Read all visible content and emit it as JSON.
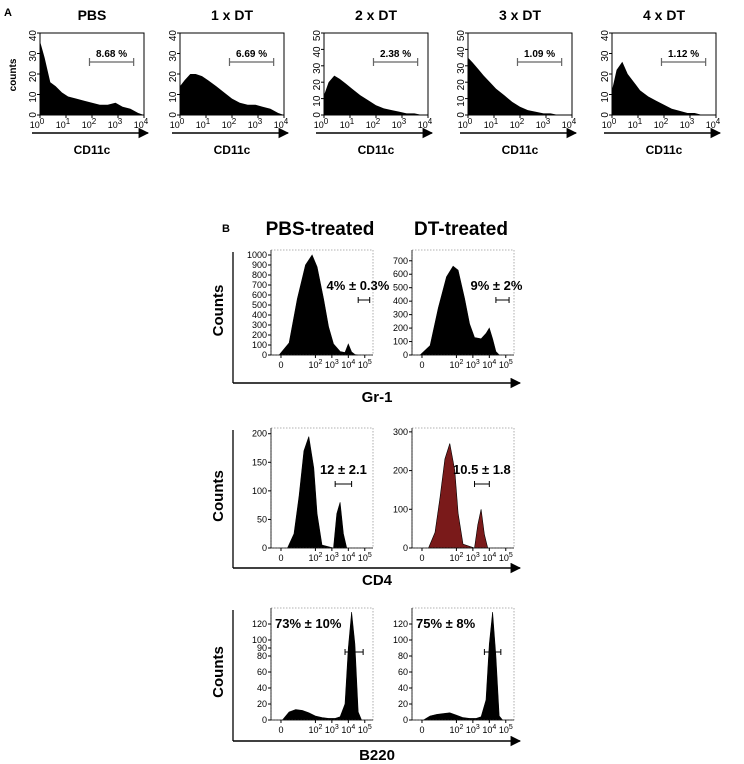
{
  "chart_data": [
    {
      "panel": "A",
      "type": "area",
      "xlabel": "CD11c",
      "ylabel": "counts",
      "x_scale": "log",
      "xlim": [
        1,
        10000
      ],
      "x_ticks": [
        "10",
        "10",
        "10",
        "10",
        "10"
      ],
      "x_tick_exponents": [
        "0",
        "1",
        "2",
        "3",
        "4"
      ],
      "gate_range": [
        80,
        4000
      ],
      "histograms": [
        {
          "title": "PBS",
          "gate_label": "8.68 %",
          "ylim": [
            0,
            40
          ],
          "y_ticks": [
            "0",
            "10",
            "20",
            "30",
            "40"
          ],
          "x": [
            1,
            1.5,
            2.5,
            4,
            7,
            12,
            25,
            50,
            100,
            200,
            400,
            800,
            1500,
            3000,
            6000,
            10000
          ],
          "y": [
            36,
            28,
            16,
            14,
            11,
            9,
            8,
            7,
            6,
            5,
            5,
            6,
            4,
            3,
            1,
            0
          ]
        },
        {
          "title": "1 x DT",
          "gate_label": "6.69 %",
          "ylim": [
            0,
            40
          ],
          "y_ticks": [
            "0",
            "10",
            "20",
            "30",
            "40"
          ],
          "x": [
            1,
            1.5,
            2.5,
            4,
            7,
            12,
            25,
            50,
            100,
            200,
            400,
            800,
            1500,
            3000,
            6000,
            10000
          ],
          "y": [
            14,
            17,
            20,
            20,
            19,
            17,
            14,
            11,
            8,
            6,
            5,
            5,
            4,
            3,
            1,
            0
          ]
        },
        {
          "title": "2 x DT",
          "gate_label": "2.38 %",
          "ylim": [
            0,
            50
          ],
          "y_ticks": [
            "0",
            "10",
            "20",
            "30",
            "40",
            "50"
          ],
          "x": [
            1,
            1.5,
            2.5,
            4,
            7,
            12,
            25,
            50,
            100,
            200,
            400,
            800,
            1500,
            3000,
            6000,
            10000
          ],
          "y": [
            12,
            20,
            24,
            22,
            19,
            16,
            12,
            9,
            6,
            4,
            3,
            2,
            1,
            1,
            0,
            0
          ]
        },
        {
          "title": "3 x DT",
          "gate_label": "1.09 %",
          "ylim": [
            0,
            50
          ],
          "y_ticks": [
            "0",
            "10",
            "20",
            "30",
            "40",
            "50"
          ],
          "x": [
            1,
            1.5,
            2.5,
            4,
            7,
            12,
            25,
            50,
            100,
            200,
            400,
            800,
            1500,
            3000,
            6000,
            10000
          ],
          "y": [
            35,
            32,
            28,
            24,
            20,
            16,
            12,
            8,
            5,
            3,
            2,
            1,
            1,
            0,
            0,
            0
          ]
        },
        {
          "title": "4 x DT",
          "gate_label": "1.12 %",
          "ylim": [
            0,
            40
          ],
          "y_ticks": [
            "0",
            "10",
            "20",
            "30",
            "40"
          ],
          "x": [
            1,
            1.5,
            2.5,
            4,
            7,
            12,
            25,
            50,
            100,
            200,
            400,
            800,
            1500,
            3000,
            6000,
            10000
          ],
          "y": [
            12,
            22,
            26,
            20,
            16,
            12,
            9,
            7,
            5,
            3,
            2,
            1,
            1,
            0,
            0,
            0
          ]
        }
      ]
    },
    {
      "panel": "B",
      "type": "area",
      "ylabel": "Counts",
      "x_scale": "log",
      "x_ticks": [
        "0",
        "10",
        "10",
        "10",
        "10"
      ],
      "x_tick_exponents": [
        "",
        "2",
        "3",
        "4",
        "5"
      ],
      "column_titles": [
        "PBS-treated",
        "DT-treated"
      ],
      "rows": [
        {
          "marker": "Gr-1",
          "histograms": [
            {
              "group": "PBS-treated",
              "gate_label": "4% ± 0.3%",
              "ylim": [
                0,
                1050
              ],
              "y_ticks": [
                "0",
                "100",
                "200",
                "300",
                "400",
                "500",
                "600",
                "700",
                "800",
                "900",
                "1000"
              ],
              "color": "#000000",
              "x": [
                -0.2,
                0.4,
                0.9,
                1.4,
                1.8,
                2.1,
                2.5,
                2.8,
                3.1,
                3.5,
                3.8,
                4.0,
                4.2,
                4.4,
                4.6
              ],
              "y": [
                0,
                120,
                560,
                900,
                1000,
                880,
                560,
                280,
                110,
                35,
                25,
                110,
                30,
                5,
                0
              ],
              "gate_range": [
                4.6,
                5.3
              ]
            },
            {
              "group": "DT-treated",
              "gate_label": "9% ± 2%",
              "ylim": [
                0,
                780
              ],
              "y_ticks": [
                "0",
                "100",
                "200",
                "300",
                "400",
                "500",
                "600",
                "700"
              ],
              "color": "#000000",
              "x": [
                -0.2,
                0.4,
                0.9,
                1.4,
                1.8,
                2.1,
                2.5,
                2.8,
                3.1,
                3.5,
                3.8,
                4.0,
                4.2,
                4.4,
                4.6
              ],
              "y": [
                0,
                70,
                350,
                580,
                660,
                630,
                420,
                230,
                130,
                120,
                160,
                200,
                120,
                25,
                0
              ],
              "gate_range": [
                4.4,
                5.2
              ]
            }
          ]
        },
        {
          "marker": "CD4",
          "histograms": [
            {
              "group": "PBS-treated",
              "gate_label": "12 ± 2.1",
              "ylim": [
                0,
                210
              ],
              "y_ticks": [
                "0",
                "50",
                "100",
                "150",
                "200"
              ],
              "color": "#000000",
              "x": [
                0.3,
                0.7,
                1.0,
                1.3,
                1.6,
                1.9,
                2.1,
                2.4,
                3.1,
                3.3,
                3.5,
                3.7,
                3.9
              ],
              "y": [
                0,
                25,
                90,
                170,
                195,
                140,
                60,
                5,
                0,
                60,
                80,
                25,
                0
              ],
              "gate_range": [
                3.2,
                4.2
              ]
            },
            {
              "group": "DT-treated",
              "gate_label": "10.5 ± 1.8",
              "ylim": [
                0,
                310
              ],
              "y_ticks": [
                "0",
                "100",
                "200",
                "300"
              ],
              "color": "#7a1a1a",
              "x": [
                0.3,
                0.7,
                1.0,
                1.3,
                1.6,
                1.9,
                2.1,
                2.4,
                3.1,
                3.3,
                3.5,
                3.7,
                3.9
              ],
              "y": [
                0,
                40,
                130,
                230,
                270,
                200,
                90,
                10,
                0,
                60,
                100,
                35,
                0
              ],
              "gate_range": [
                3.1,
                4.0
              ]
            }
          ]
        },
        {
          "marker": "B220",
          "histograms": [
            {
              "group": "PBS-treated",
              "gate_label": "73% ± 10%",
              "ylim": [
                0,
                140
              ],
              "y_ticks": [
                "0",
                "20",
                "40",
                "60",
                "80",
                "90",
                "100",
                "120"
              ],
              "color": "#000000",
              "x": [
                0,
                0.4,
                0.8,
                1.2,
                1.6,
                2.0,
                2.4,
                2.8,
                3.2,
                3.5,
                3.8,
                4.0,
                4.2,
                4.4,
                4.6,
                4.8
              ],
              "y": [
                0,
                10,
                13,
                12,
                9,
                5,
                3,
                2,
                2,
                4,
                20,
                90,
                135,
                95,
                10,
                0
              ],
              "gate_range": [
                3.8,
                4.9
              ]
            },
            {
              "group": "DT-treated",
              "gate_label": "75% ± 8%",
              "ylim": [
                0,
                140
              ],
              "y_ticks": [
                "0",
                "20",
                "40",
                "60",
                "80",
                "100",
                "120"
              ],
              "color": "#000000",
              "x": [
                0,
                0.4,
                0.8,
                1.2,
                1.6,
                2.0,
                2.4,
                2.8,
                3.2,
                3.5,
                3.8,
                4.0,
                4.2,
                4.4,
                4.6,
                4.8
              ],
              "y": [
                0,
                5,
                7,
                8,
                9,
                6,
                3,
                2,
                2,
                4,
                25,
                95,
                135,
                80,
                5,
                0
              ],
              "gate_range": [
                3.7,
                4.7
              ]
            }
          ]
        }
      ]
    }
  ]
}
